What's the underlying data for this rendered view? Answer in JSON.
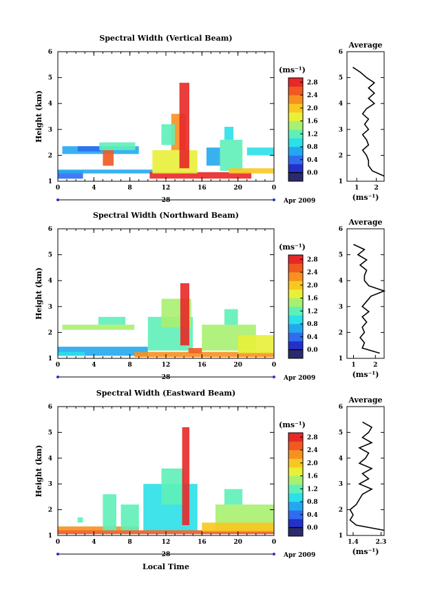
{
  "shared": {
    "colorbar_unit": "(ms⁻¹)",
    "avg_unit": "(ms⁻¹)",
    "date_label": "Apr 2009",
    "day_label": "28",
    "xlabel": "Local Time",
    "ylabel": "Height (km)",
    "avg_title": "Average",
    "x_ticks": [
      "0",
      "4",
      "8",
      "12",
      "16",
      "20",
      "0"
    ],
    "y_ticks": [
      "1",
      "2",
      "3",
      "4",
      "5",
      "6"
    ],
    "colorbar_ticks_a": [
      "0.0",
      "0.4",
      "0.8",
      "1.2",
      "1.6",
      "2.0",
      "2.4",
      "2.8"
    ],
    "colorbar_ticks_b": [
      "0.0",
      "0.4",
      "0.8",
      "1.2",
      "1.6",
      "2.0",
      "2.4",
      "2.8"
    ],
    "colorbar_ticks_c": [
      "0.0",
      "0.4",
      "0.8",
      "1.2",
      "1.6",
      "2.0",
      "2.4",
      "2.8"
    ],
    "colors": [
      "#2c2a6e",
      "#2430c8",
      "#2f6cf0",
      "#23a8f0",
      "#2be0e8",
      "#5ef0b8",
      "#a8f070",
      "#e8f038",
      "#f8c820",
      "#f89020",
      "#f05a20",
      "#e82828"
    ]
  },
  "chart_data": [
    {
      "type": "heatmap",
      "title": "Spectral Width (Vertical Beam)",
      "xlim": [
        0,
        24
      ],
      "ylim": [
        1,
        6
      ],
      "clim": [
        0.0,
        3.0
      ],
      "avg_xlim": [
        0.5,
        2.4
      ],
      "avg_ticks": [
        "1",
        "2"
      ],
      "average_profile": {
        "height": [
          1.2,
          1.4,
          1.6,
          1.8,
          2.0,
          2.2,
          2.4,
          2.6,
          2.8,
          3.0,
          3.2,
          3.4,
          3.6,
          3.8,
          4.0,
          4.2,
          4.4,
          4.6,
          4.8,
          5.0,
          5.2,
          5.4
        ],
        "value": [
          2.4,
          1.8,
          1.6,
          1.6,
          1.5,
          1.3,
          1.6,
          1.5,
          1.3,
          1.6,
          1.4,
          1.6,
          1.3,
          1.5,
          1.9,
          1.6,
          1.9,
          1.6,
          1.9,
          1.5,
          1.2,
          0.8
        ]
      },
      "blocks": [
        {
          "t": [
            0,
            2.8
          ],
          "h": [
            1.1,
            1.4
          ],
          "v": 0.7
        },
        {
          "t": [
            0,
            10.5
          ],
          "h": [
            1.3,
            1.45
          ],
          "v": 0.9
        },
        {
          "t": [
            0.5,
            9.0
          ],
          "h": [
            2.05,
            2.35
          ],
          "v": 0.9
        },
        {
          "t": [
            2.2,
            4.8
          ],
          "h": [
            2.15,
            2.35
          ],
          "v": 0.6
        },
        {
          "t": [
            5.0,
            6.2
          ],
          "h": [
            1.6,
            2.2
          ],
          "v": 2.6
        },
        {
          "t": [
            4.6,
            8.6
          ],
          "h": [
            2.2,
            2.5
          ],
          "v": 1.4
        },
        {
          "t": [
            10.2,
            21.5
          ],
          "h": [
            1.1,
            1.35
          ],
          "v": 2.9
        },
        {
          "t": [
            10.5,
            15.5
          ],
          "h": [
            1.3,
            2.2
          ],
          "v": 1.8
        },
        {
          "t": [
            12.6,
            14.2
          ],
          "h": [
            2.2,
            3.6
          ],
          "v": 2.3
        },
        {
          "t": [
            13.5,
            14.6
          ],
          "h": [
            1.5,
            4.8
          ],
          "v": 2.9
        },
        {
          "t": [
            11.5,
            13.0
          ],
          "h": [
            2.4,
            3.2
          ],
          "v": 1.3
        },
        {
          "t": [
            18.0,
            20.5
          ],
          "h": [
            1.4,
            2.6
          ],
          "v": 1.4
        },
        {
          "t": [
            18.5,
            19.5
          ],
          "h": [
            2.6,
            3.1
          ],
          "v": 1.2
        },
        {
          "t": [
            19.0,
            24.0
          ],
          "h": [
            1.3,
            1.5
          ],
          "v": 2.1
        },
        {
          "t": [
            21.0,
            24.0
          ],
          "h": [
            2.0,
            2.3
          ],
          "v": 1.0
        },
        {
          "t": [
            16.5,
            18.0
          ],
          "h": [
            1.6,
            2.3
          ],
          "v": 0.9
        }
      ]
    },
    {
      "type": "heatmap",
      "title": "Spectral Width (Northward Beam)",
      "xlim": [
        0,
        24
      ],
      "ylim": [
        1,
        6
      ],
      "clim": [
        0.0,
        3.0
      ],
      "avg_xlim": [
        0.7,
        2.4
      ],
      "avg_ticks": [
        "1",
        "2"
      ],
      "average_profile": {
        "height": [
          1.2,
          1.4,
          1.6,
          1.8,
          2.0,
          2.2,
          2.4,
          2.6,
          2.8,
          3.0,
          3.2,
          3.4,
          3.6,
          3.8,
          4.0,
          4.2,
          4.4,
          4.6,
          4.8,
          5.0,
          5.2,
          5.4
        ],
        "value": [
          2.2,
          1.4,
          1.5,
          1.3,
          1.5,
          1.4,
          1.6,
          1.4,
          1.7,
          1.4,
          1.6,
          1.8,
          2.4,
          1.7,
          1.5,
          1.5,
          1.6,
          1.3,
          1.6,
          1.2,
          1.5,
          1.0
        ]
      },
      "blocks": [
        {
          "t": [
            0,
            10.0
          ],
          "h": [
            1.1,
            1.45
          ],
          "v": 0.8
        },
        {
          "t": [
            0,
            3.0
          ],
          "h": [
            1.1,
            1.25
          ],
          "v": 1.2
        },
        {
          "t": [
            0.5,
            8.5
          ],
          "h": [
            2.1,
            2.3
          ],
          "v": 1.5
        },
        {
          "t": [
            4.5,
            7.5
          ],
          "h": [
            2.3,
            2.6
          ],
          "v": 1.3
        },
        {
          "t": [
            8.5,
            24.0
          ],
          "h": [
            1.05,
            1.25
          ],
          "v": 2.3
        },
        {
          "t": [
            10.0,
            15.0
          ],
          "h": [
            1.3,
            2.6
          ],
          "v": 1.3
        },
        {
          "t": [
            11.5,
            14.8
          ],
          "h": [
            2.2,
            3.3
          ],
          "v": 1.5
        },
        {
          "t": [
            13.6,
            14.6
          ],
          "h": [
            1.5,
            3.9
          ],
          "v": 2.9
        },
        {
          "t": [
            16.0,
            22.0
          ],
          "h": [
            1.3,
            2.3
          ],
          "v": 1.5
        },
        {
          "t": [
            18.5,
            20.0
          ],
          "h": [
            2.3,
            2.9
          ],
          "v": 1.4
        },
        {
          "t": [
            20.0,
            24.0
          ],
          "h": [
            1.2,
            1.9
          ],
          "v": 1.9
        },
        {
          "t": [
            14.5,
            16.0
          ],
          "h": [
            1.2,
            1.4
          ],
          "v": 2.6
        }
      ]
    },
    {
      "type": "heatmap",
      "title": "Spectral Width (Eastward Beam)",
      "xlim": [
        0,
        24
      ],
      "ylim": [
        1,
        6
      ],
      "clim": [
        0.0,
        3.0
      ],
      "avg_xlim": [
        1.2,
        2.4
      ],
      "avg_ticks": [
        "1.4",
        "2.3"
      ],
      "average_profile": {
        "height": [
          1.2,
          1.4,
          1.6,
          1.8,
          2.0,
          2.2,
          2.4,
          2.6,
          2.8,
          3.0,
          3.2,
          3.4,
          3.6,
          3.8,
          4.0,
          4.2,
          4.4,
          4.6,
          4.8,
          5.0,
          5.2,
          5.4
        ],
        "value": [
          2.4,
          1.5,
          1.3,
          1.4,
          1.3,
          1.5,
          1.6,
          1.7,
          2.0,
          1.6,
          1.9,
          1.7,
          2.0,
          1.6,
          1.8,
          1.9,
          1.6,
          2.0,
          1.7,
          1.9,
          2.0,
          1.7
        ]
      },
      "blocks": [
        {
          "t": [
            0,
            24.0
          ],
          "h": [
            1.05,
            1.2
          ],
          "v": 2.7
        },
        {
          "t": [
            0,
            9.0
          ],
          "h": [
            1.2,
            1.35
          ],
          "v": 2.4
        },
        {
          "t": [
            2.2,
            2.8
          ],
          "h": [
            1.5,
            1.7
          ],
          "v": 1.3
        },
        {
          "t": [
            5.0,
            6.5
          ],
          "h": [
            1.2,
            2.6
          ],
          "v": 1.4
        },
        {
          "t": [
            7.0,
            9.0
          ],
          "h": [
            1.2,
            2.2
          ],
          "v": 1.3
        },
        {
          "t": [
            9.5,
            15.5
          ],
          "h": [
            1.2,
            3.0
          ],
          "v": 1.2
        },
        {
          "t": [
            11.5,
            14.0
          ],
          "h": [
            2.2,
            3.6
          ],
          "v": 1.4
        },
        {
          "t": [
            13.8,
            14.6
          ],
          "h": [
            1.4,
            5.2
          ],
          "v": 2.9
        },
        {
          "t": [
            17.5,
            24.0
          ],
          "h": [
            1.2,
            2.2
          ],
          "v": 1.5
        },
        {
          "t": [
            18.5,
            20.5
          ],
          "h": [
            2.2,
            2.8
          ],
          "v": 1.3
        },
        {
          "t": [
            16.0,
            24.0
          ],
          "h": [
            1.15,
            1.5
          ],
          "v": 2.0
        }
      ]
    }
  ]
}
